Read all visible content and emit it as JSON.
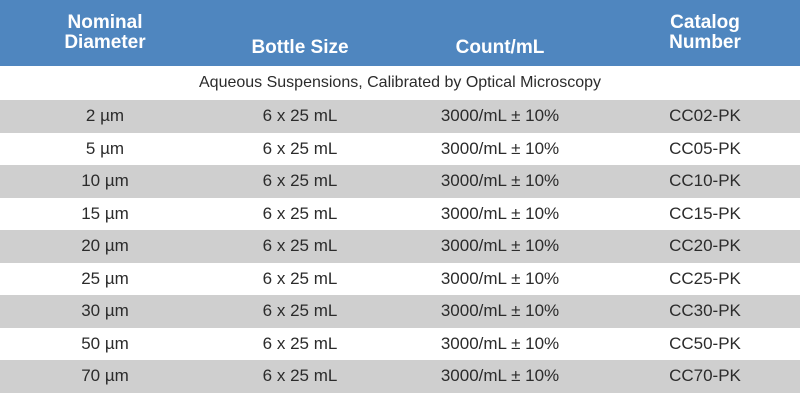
{
  "headers": [
    {
      "lines": [
        "Nominal",
        "Diameter"
      ]
    },
    {
      "lines": [
        "Bottle Size"
      ]
    },
    {
      "lines": [
        "Count/mL"
      ]
    },
    {
      "lines": [
        "Catalog",
        "Number"
      ]
    }
  ],
  "subheader": "Aqueous Suspensions, Calibrated by Optical Microscopy",
  "rows": [
    [
      "2 µm",
      "6 x 25 mL",
      "3000/mL ± 10%",
      "CC02-PK"
    ],
    [
      "5 µm",
      "6 x 25 mL",
      "3000/mL ± 10%",
      "CC05-PK"
    ],
    [
      "10 µm",
      "6 x 25 mL",
      "3000/mL ± 10%",
      "CC10-PK"
    ],
    [
      "15 µm",
      "6 x 25 mL",
      "3000/mL ± 10%",
      "CC15-PK"
    ],
    [
      "20 µm",
      "6 x 25 mL",
      "3000/mL ± 10%",
      "CC20-PK"
    ],
    [
      "25 µm",
      "6 x 25 mL",
      "3000/mL ± 10%",
      "CC25-PK"
    ],
    [
      "30 µm",
      "6 x 25 mL",
      "3000/mL ± 10%",
      "CC30-PK"
    ],
    [
      "50 µm",
      "6 x 25 mL",
      "3000/mL ± 10%",
      "CC50-PK"
    ],
    [
      "70 µm",
      "6 x 25 mL",
      "3000/mL ± 10%",
      "CC70-PK"
    ]
  ],
  "colors": {
    "header_bg": "#4f86bf",
    "header_text": "#ffffff",
    "shaded_row": "#cfcfcf",
    "plain_row": "#ffffff",
    "body_text": "#2b2b2b"
  }
}
